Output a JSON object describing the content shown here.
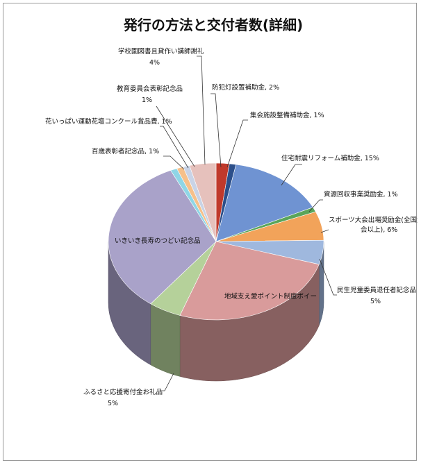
{
  "chart_data": {
    "type": "pie",
    "title": "発行の方法と交付者数(詳細)",
    "slices": [
      {
        "label": "防犯灯設置補助金",
        "value_label": "2%",
        "value": 2,
        "color": "#c0392b"
      },
      {
        "label": "集会施設整備補助金",
        "value_label": "1%",
        "value": 1,
        "color": "#2c4f8a"
      },
      {
        "label": "住宅耐震リフォーム補助金",
        "value_label": "15%",
        "value": 15,
        "color": "#6f93d2"
      },
      {
        "label": "資源回収事業奨励金",
        "value_label": "1%",
        "value": 1,
        "color": "#5aa55a"
      },
      {
        "label": "スポーツ大会出場奨励金(全国大会以上)",
        "value_label": "6%",
        "value": 6,
        "color": "#f2a35a"
      },
      {
        "label": "民生児童委員退任者記念品",
        "value_label": "5%",
        "value": 5,
        "color": "#9fb8de"
      },
      {
        "label": "地域支え愛ポイント制度ボイー",
        "value_label": "",
        "value": 26,
        "color": "#d99b9b"
      },
      {
        "label": "ふるさと応援寄付金お礼品",
        "value_label": "5%",
        "value": 5,
        "color": "#b5d19a"
      },
      {
        "label": "いきいき長寿のつどい記念品",
        "value_label": "",
        "value": 33,
        "color": "#a9a2c9"
      },
      {
        "label": "百歳表彰者記念品",
        "value_label": "1%",
        "value": 1,
        "color": "#8fd6e6"
      },
      {
        "label": "花いっぱい運動花壇コンクール賞品費",
        "value_label": "1%",
        "value": 1,
        "color": "#f6c08a"
      },
      {
        "label": "教育委員会表彰記念品",
        "value_label": "1%",
        "value": 1,
        "color": "#c9d3e6"
      },
      {
        "label": "学校園図書且貸作い講師謝礼",
        "value_label": "4%",
        "value": 4,
        "color": "#e6c1bc"
      }
    ]
  }
}
